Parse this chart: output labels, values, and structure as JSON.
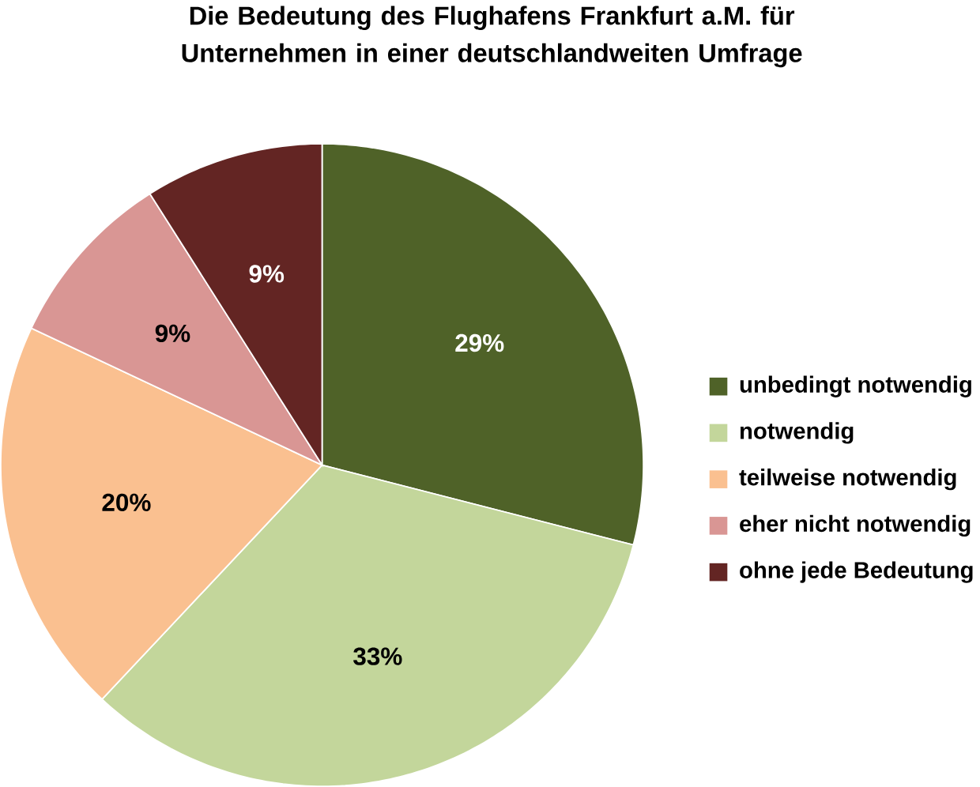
{
  "chart_data": {
    "type": "pie",
    "title": "Die Bedeutung des Flughafens Frankfurt a.M. für Unternehmen in einer deutschlandweiten Umfrage",
    "categories": [
      "unbedingt notwendig",
      "notwendig",
      "teilweise notwendig",
      "eher nicht notwendig",
      "ohne jede Bedeutung"
    ],
    "values": [
      29,
      33,
      20,
      9,
      9
    ],
    "value_labels": [
      "29%",
      "33%",
      "20%",
      "9%",
      "9%"
    ],
    "colors": [
      "#4f6228",
      "#c3d69b",
      "#fac090",
      "#d99694",
      "#632523"
    ],
    "legend": "right"
  }
}
